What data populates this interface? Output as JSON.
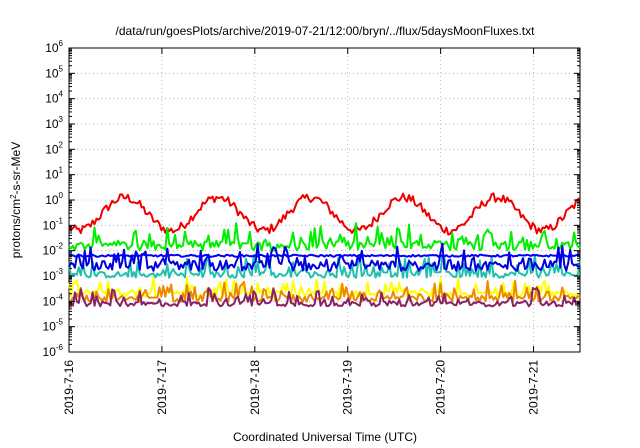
{
  "chart_data": {
    "type": "line",
    "title": "/data/run/goesPlots/archive/2019-07-21/12:00/bryn/../flux/5daysMoonFluxes.txt",
    "xlabel": "Coordinated Universal Time (UTC)",
    "ylabel": {
      "base": "protons/cm",
      "sup": "2",
      "rest": "-s-sr-MeV"
    },
    "x_ticks": [
      "2019-7-16",
      "2019-7-17",
      "2019-7-18",
      "2019-7-19",
      "2019-7-20",
      "2019-7-21"
    ],
    "xlim_days": [
      0,
      5.5
    ],
    "y_scale": "log",
    "ylim_exp": [
      -6,
      6
    ],
    "y_tick_base": "10",
    "y_tick_exps": [
      "-6",
      "-5",
      "-4",
      "-3",
      "-2",
      "-1",
      "0",
      "1",
      "2",
      "3",
      "4",
      "5",
      "6"
    ],
    "grid": true,
    "series": [
      {
        "color": "#ee0000",
        "width": 2,
        "base_log": -0.55,
        "wave_amp": 0.65,
        "wave_period_days": 1.0,
        "wave_phase_days": 0.35,
        "noise_amp": 0.18,
        "spike_prob": 0.0,
        "spike_amp": 0
      },
      {
        "color": "#00ee00",
        "width": 2,
        "base_log": -1.8,
        "wave_amp": 0,
        "wave_period_days": 1.0,
        "wave_phase_days": 0,
        "noise_amp": 0.2,
        "spike_prob": 0.28,
        "spike_amp": 0.75
      },
      {
        "color": "#20c0b0",
        "width": 2,
        "base_log": -2.95,
        "wave_amp": 0,
        "wave_period_days": 1.0,
        "wave_phase_days": 0,
        "noise_amp": 0.12,
        "spike_prob": 0.3,
        "spike_amp": 0.7
      },
      {
        "color": "#0000dd",
        "width": 2,
        "base_log": -2.6,
        "wave_amp": 0,
        "wave_period_days": 1.0,
        "wave_phase_days": 0,
        "noise_amp": 0.2,
        "spike_prob": 0.3,
        "spike_amp": 0.7
      },
      {
        "color": "#0000ff",
        "width": 2,
        "base_log": -2.2,
        "wave_amp": 0,
        "wave_period_days": 1.0,
        "wave_phase_days": 0,
        "noise_amp": 0.04,
        "spike_prob": 0,
        "spike_amp": 0
      },
      {
        "color": "#ffff00",
        "width": 2,
        "base_log": -3.7,
        "wave_amp": 0,
        "wave_period_days": 1.0,
        "wave_phase_days": 0,
        "noise_amp": 0.12,
        "spike_prob": 0.3,
        "spike_amp": 0.55
      },
      {
        "color": "#ee8800",
        "width": 2,
        "base_log": -3.9,
        "wave_amp": 0,
        "wave_period_days": 1.0,
        "wave_phase_days": 0,
        "noise_amp": 0.12,
        "spike_prob": 0.3,
        "spike_amp": 0.6
      },
      {
        "color": "#882266",
        "width": 2,
        "base_log": -4.1,
        "wave_amp": 0,
        "wave_period_days": 1.0,
        "wave_phase_days": 0,
        "noise_amp": 0.1,
        "spike_prob": 0.3,
        "spike_amp": 0.6
      }
    ]
  }
}
